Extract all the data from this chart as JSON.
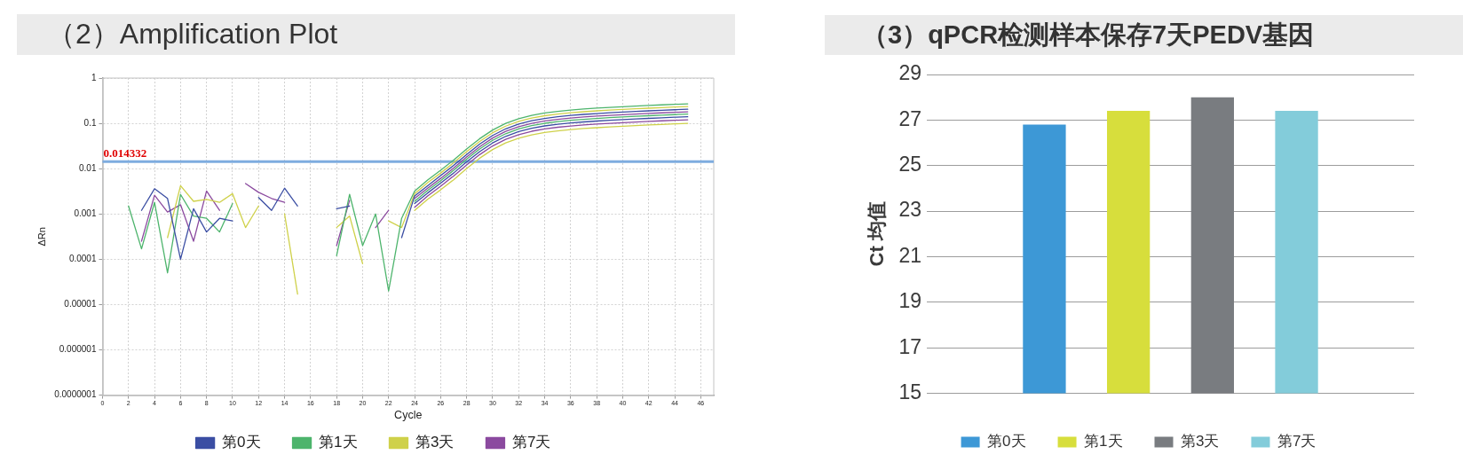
{
  "chart_data": [
    {
      "type": "line",
      "title": "（2）Amplification Plot",
      "xlabel": "Cycle",
      "ylabel": "ΔRn",
      "log": "y",
      "grid": true,
      "legend": "bottom",
      "x": [
        2,
        3,
        4,
        5,
        6,
        7,
        8,
        9,
        10,
        11,
        12,
        13,
        14,
        15,
        16,
        17,
        18,
        19,
        20,
        21,
        22,
        23,
        24,
        25,
        26,
        27,
        28,
        29,
        30,
        31,
        32,
        33,
        34,
        35,
        36,
        37,
        38,
        39,
        40,
        41,
        42,
        43,
        44,
        45
      ],
      "xlim": [
        0,
        47
      ],
      "xticks": [
        0,
        2,
        4,
        6,
        8,
        10,
        12,
        14,
        16,
        18,
        20,
        22,
        24,
        26,
        28,
        30,
        32,
        34,
        36,
        38,
        40,
        42,
        44,
        46
      ],
      "ylim": [
        1e-07,
        1
      ],
      "yticks": [
        {
          "value": 1e-07,
          "label": "0.0000001"
        },
        {
          "value": 1e-06,
          "label": "0.000001"
        },
        {
          "value": 1e-05,
          "label": "0.00001"
        },
        0.0001,
        0.001,
        0.01,
        0.1,
        1
      ],
      "ref_lines": [
        {
          "axis": "y",
          "value": 0.014332,
          "label": "0.014332",
          "color": "#7eacdf"
        }
      ],
      "series": [
        {
          "name": "第0天",
          "color": "#3b4ea3",
          "values": [
            null,
            0.0012,
            0.0036,
            0.0022,
            0.0001,
            0.0013,
            0.0004,
            0.0008,
            0.0007,
            null,
            0.0023,
            0.0012,
            0.0037,
            0.0015,
            null,
            null,
            0.0013,
            0.0015,
            null,
            null,
            null,
            0.0003,
            0.0025,
            0.0042,
            0.007,
            0.0118,
            0.0206,
            0.0348,
            0.0541,
            0.0756,
            0.0961,
            0.1142,
            0.1285,
            0.1399,
            0.1493,
            0.1574,
            0.1645,
            0.1711,
            0.1772,
            0.1828,
            0.1885,
            0.1942,
            0.1998,
            0.205
          ]
        },
        {
          "name": "第1天",
          "color": "#4db46c",
          "values": [
            0.0015,
            0.00017,
            0.0018,
            5e-05,
            0.0027,
            0.0009,
            0.0008,
            0.0004,
            0.0017,
            null,
            null,
            null,
            null,
            null,
            null,
            null,
            0.00012,
            0.0027,
            0.0002,
            0.001,
            2e-05,
            0.0008,
            0.0032,
            0.0056,
            0.0092,
            0.0155,
            0.0272,
            0.0458,
            0.0713,
            0.0996,
            0.1266,
            0.1505,
            0.1692,
            0.1842,
            0.1966,
            0.2073,
            0.2166,
            0.2253,
            0.2334,
            0.2408,
            0.2483,
            0.2557,
            0.2632,
            0.27
          ]
        },
        {
          "name": "第3天",
          "color": "#cfd14a",
          "values": [
            null,
            null,
            null,
            0.0003,
            0.0042,
            0.0019,
            0.0021,
            0.0018,
            0.0028,
            0.0005,
            0.0015,
            null,
            0.001,
            1.7e-05,
            null,
            null,
            0.0005,
            0.0009,
            8e-05,
            null,
            0.0007,
            0.0005,
            0.0028,
            0.0049,
            0.008,
            0.0135,
            0.0237,
            0.0399,
            0.062,
            0.0867,
            0.1102,
            0.131,
            0.1473,
            0.1603,
            0.1711,
            0.1804,
            0.1885,
            0.1961,
            0.2031,
            0.2096,
            0.2161,
            0.2226,
            0.2291,
            0.235
          ]
        },
        {
          "name": "第7天",
          "color": "#8b4a9f",
          "values": [
            null,
            0.00025,
            0.0026,
            0.0011,
            0.0016,
            0.00025,
            0.0032,
            0.0012,
            null,
            0.0047,
            0.003,
            0.0022,
            0.0018,
            null,
            null,
            null,
            0.0002,
            0.002,
            null,
            0.0005,
            0.0012,
            null,
            0.0022,
            0.0037,
            0.0061,
            0.0103,
            0.0181,
            0.0305,
            0.0475,
            0.0664,
            0.0844,
            0.1003,
            0.1128,
            0.1228,
            0.1311,
            0.1382,
            0.1444,
            0.1502,
            0.1556,
            0.1606,
            0.1655,
            0.1705,
            0.1754,
            0.18
          ]
        },
        {
          "color": "#4db46c",
          "values": [
            null,
            null,
            null,
            null,
            null,
            null,
            null,
            null,
            null,
            null,
            null,
            null,
            null,
            null,
            null,
            null,
            null,
            null,
            null,
            null,
            null,
            null,
            0.0019,
            0.0033,
            0.0054,
            0.0092,
            0.0161,
            0.0271,
            0.0422,
            0.059,
            0.075,
            0.0892,
            0.1003,
            0.1092,
            0.1165,
            0.1228,
            0.1284,
            0.1335,
            0.1383,
            0.1427,
            0.1471,
            0.1515,
            0.1559,
            0.16
          ]
        },
        {
          "color": "#3b4ea3",
          "values": [
            null,
            null,
            null,
            null,
            null,
            null,
            null,
            null,
            null,
            null,
            null,
            null,
            null,
            null,
            null,
            null,
            null,
            null,
            null,
            null,
            null,
            null,
            0.0017,
            0.0029,
            0.0048,
            0.008,
            0.0141,
            0.0238,
            0.0369,
            0.0516,
            0.0657,
            0.078,
            0.0877,
            0.0955,
            0.102,
            0.1075,
            0.1123,
            0.1168,
            0.121,
            0.1249,
            0.1287,
            0.1326,
            0.1365,
            0.14
          ]
        },
        {
          "color": "#8b4a9f",
          "values": [
            null,
            null,
            null,
            null,
            null,
            null,
            null,
            null,
            null,
            null,
            null,
            null,
            null,
            null,
            null,
            null,
            null,
            null,
            null,
            null,
            null,
            null,
            0.0014,
            0.0025,
            0.0041,
            0.0069,
            0.0121,
            0.0204,
            0.0317,
            0.0442,
            0.0563,
            0.0669,
            0.0752,
            0.0819,
            0.0874,
            0.0921,
            0.0963,
            0.1001,
            0.1037,
            0.107,
            0.1103,
            0.1137,
            0.117,
            0.12
          ]
        },
        {
          "color": "#cfd14a",
          "values": [
            null,
            null,
            null,
            null,
            null,
            null,
            null,
            null,
            null,
            null,
            null,
            null,
            null,
            null,
            null,
            null,
            null,
            null,
            null,
            null,
            null,
            null,
            0.0012,
            0.0021,
            0.0034,
            0.0057,
            0.0101,
            0.017,
            0.0264,
            0.0369,
            0.0469,
            0.0557,
            0.0627,
            0.0682,
            0.0728,
            0.0768,
            0.0802,
            0.0835,
            0.0864,
            0.0892,
            0.092,
            0.0947,
            0.0975,
            0.1
          ]
        }
      ]
    },
    {
      "type": "bar",
      "title": "（3）qPCR检测样本保存7天PEDV基因",
      "ylabel": "Ct 均值",
      "grid": "y",
      "legend": "bottom",
      "categories": [
        null
      ],
      "ylim": [
        15,
        29
      ],
      "yticks": [
        15,
        17,
        19,
        21,
        23,
        25,
        27,
        29
      ],
      "series": [
        {
          "name": "第0天",
          "color": "#3d98d6",
          "values": [
            26.8
          ]
        },
        {
          "name": "第1天",
          "color": "#d7de3c",
          "values": [
            27.4
          ]
        },
        {
          "name": "第3天",
          "color": "#797c80",
          "values": [
            28.0
          ]
        },
        {
          "name": "第7天",
          "color": "#83ccda",
          "values": [
            27.4
          ]
        }
      ]
    }
  ]
}
